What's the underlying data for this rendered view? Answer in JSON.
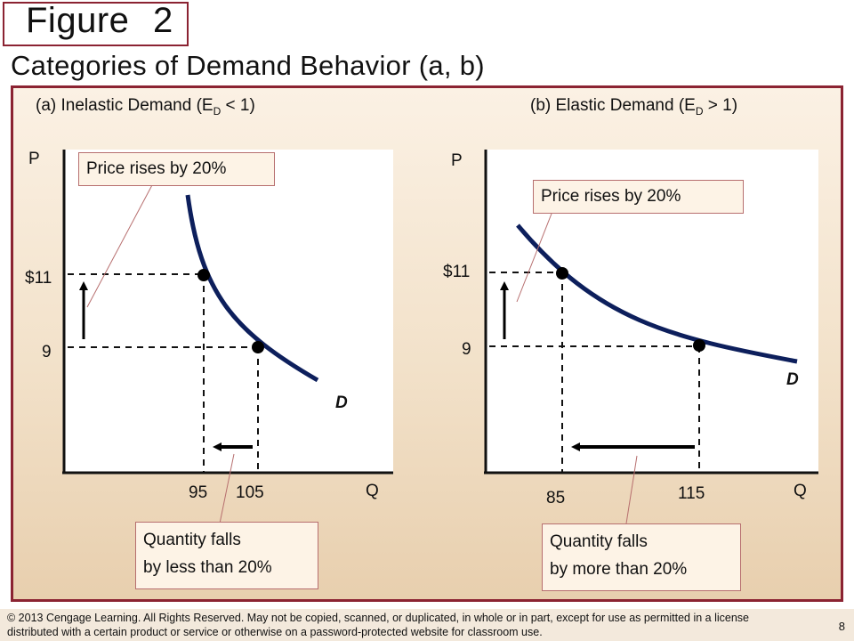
{
  "figure": {
    "label": "Figure",
    "number": "2"
  },
  "title": "Categories of Demand Behavior (a, b)",
  "chart_data": [
    {
      "type": "line",
      "title": "(a) Inelastic Demand (E",
      "title_sub": "D",
      "title_end": " < 1)",
      "xlabel": "Q",
      "ylabel": "P",
      "curve_label": "D",
      "points": [
        {
          "x": 95,
          "y": 11,
          "x_label": "95",
          "y_label": "$11"
        },
        {
          "x": 105,
          "y": 9,
          "x_label": "105",
          "y_label": "9"
        }
      ],
      "annotations": {
        "price": "Price rises by 20%",
        "quantity_line1": "Quantity falls",
        "quantity_line2": "by less than 20%"
      }
    },
    {
      "type": "line",
      "title": "(b) Elastic Demand (E",
      "title_sub": "D",
      "title_end": " > 1)",
      "xlabel": "Q",
      "ylabel": "P",
      "curve_label": "D",
      "points": [
        {
          "x": 85,
          "y": 11,
          "x_label": "85",
          "y_label": "$11"
        },
        {
          "x": 115,
          "y": 9,
          "x_label": "115",
          "y_label": "9"
        }
      ],
      "annotations": {
        "price": "Price  rises by 20%",
        "quantity_line1": "Quantity falls",
        "quantity_line2": "by more than 20%"
      }
    }
  ],
  "footer": {
    "copyright": "© 2013 Cengage Learning. All Rights Reserved. May not be copied, scanned, or duplicated, in whole or in part, except for use as permitted in a license distributed with a certain product or service or otherwise on a password-protected website for classroom use.",
    "page": "8"
  },
  "colors": {
    "curve": "#0d1f5c",
    "border": "#8b2332",
    "annotation_bg": "#fdf3e6"
  }
}
